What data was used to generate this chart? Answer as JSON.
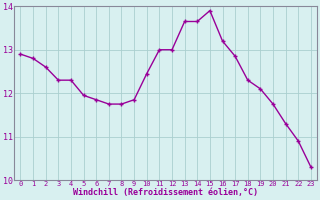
{
  "x": [
    0,
    1,
    2,
    3,
    4,
    5,
    6,
    7,
    8,
    9,
    10,
    11,
    12,
    13,
    14,
    15,
    16,
    17,
    18,
    19,
    20,
    21,
    22,
    23
  ],
  "y": [
    12.9,
    12.8,
    12.6,
    12.3,
    12.3,
    11.95,
    11.85,
    11.75,
    11.75,
    11.85,
    12.45,
    13.0,
    13.0,
    13.65,
    13.65,
    13.9,
    13.2,
    12.85,
    12.3,
    12.1,
    11.75,
    11.3,
    10.9,
    10.3
  ],
  "line_color": "#990099",
  "marker": "+",
  "marker_size": 3,
  "bg_color": "#d8f0f0",
  "grid_color": "#aacfcf",
  "xlabel": "Windchill (Refroidissement éolien,°C)",
  "xlabel_color": "#990099",
  "tick_color": "#990099",
  "axis_color": "#888899",
  "ylim": [
    10,
    14
  ],
  "xlim": [
    -0.5,
    23.5
  ],
  "yticks": [
    10,
    11,
    12,
    13,
    14
  ],
  "xtick_labels": [
    "0",
    "1",
    "2",
    "3",
    "4",
    "5",
    "6",
    "7",
    "8",
    "9",
    "10",
    "11",
    "12",
    "13",
    "14",
    "15",
    "16",
    "17",
    "18",
    "19",
    "20",
    "21",
    "22",
    "23"
  ],
  "xticks": [
    0,
    1,
    2,
    3,
    4,
    5,
    6,
    7,
    8,
    9,
    10,
    11,
    12,
    13,
    14,
    15,
    16,
    17,
    18,
    19,
    20,
    21,
    22,
    23
  ],
  "line_width": 1.0,
  "tick_fontsize": 5.0,
  "ylabel_fontsize": 5.0,
  "xlabel_fontsize": 6.0
}
